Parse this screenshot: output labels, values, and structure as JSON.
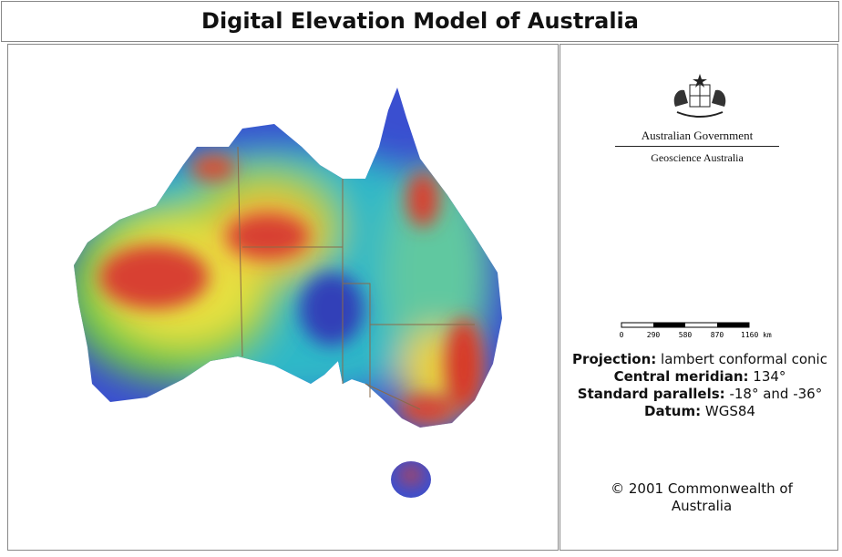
{
  "title": "Digital Elevation Model of Australia",
  "logo": {
    "line1": "Australian Government",
    "line2": "Geoscience Australia"
  },
  "scale_bar": {
    "labels": [
      "0",
      "290",
      "580",
      "870",
      "1160 km"
    ]
  },
  "info": [
    {
      "label": "Projection:",
      "value": "lambert conformal conic"
    },
    {
      "label": "Central meridian:",
      "value": "134°"
    },
    {
      "label": "Standard parallels:",
      "value": "-18° and -36°"
    },
    {
      "label": "Datum:",
      "value": "WGS84"
    }
  ],
  "copyright": "© 2001 Commonwealth of Australia"
}
